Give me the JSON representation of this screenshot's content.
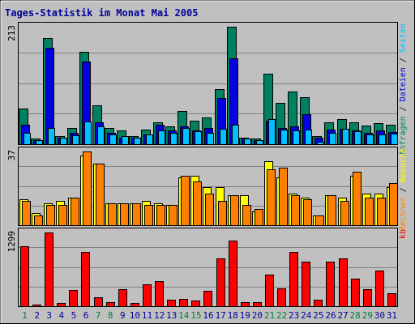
{
  "chart_data": {
    "type": "bar",
    "title": "Tages-Statistik im Monat Mai 2005",
    "colors": {
      "title": "#000099",
      "background": "#c0c0c0",
      "anfragen": "#008060",
      "dateien": "#0000e0",
      "seiten": "#00c0ff",
      "besuche": "#ffff00",
      "rechner": "#ff8000",
      "kb": "#ff0000",
      "weekday_label": "#000099",
      "weekend_label": "#008040"
    },
    "days": [
      "1",
      "2",
      "3",
      "4",
      "5",
      "6",
      "7",
      "8",
      "9",
      "10",
      "11",
      "12",
      "13",
      "14",
      "15",
      "16",
      "17",
      "18",
      "19",
      "20",
      "21",
      "22",
      "23",
      "24",
      "25",
      "26",
      "27",
      "28",
      "29",
      "30",
      "31"
    ],
    "weekend_days": [
      "1",
      "7",
      "8",
      "14",
      "15",
      "21",
      "22",
      "28",
      "29"
    ],
    "panels": [
      {
        "id": "requests",
        "max_label": "213",
        "ymax": 213,
        "right_labels": [
          {
            "text": "Anfragen",
            "color": "#008060"
          },
          {
            "text": " / ",
            "color": "#000000"
          },
          {
            "text": "Dateien",
            "color": "#0000e0"
          },
          {
            "text": " / ",
            "color": "#000000"
          },
          {
            "text": "Seiten",
            "color": "#00c0ff"
          }
        ],
        "series": [
          {
            "name": "Anfragen",
            "color": "#008060",
            "values": [
              65,
              10,
              193,
              14,
              30,
              168,
              70,
              30,
              25,
              15,
              27,
              40,
              32,
              60,
              42,
              48,
              100,
              213,
              12,
              10,
              128,
              75,
              95,
              85,
              15,
              40,
              45,
              40,
              34,
              38,
              35
            ]
          },
          {
            "name": "Dateien",
            "color": "#0000e0",
            "values": [
              35,
              8,
              175,
              12,
              20,
              150,
              40,
              20,
              12,
              12,
              18,
              35,
              25,
              32,
              25,
              30,
              84,
              155,
              10,
              8,
              42,
              30,
              32,
              55,
              12,
              27,
              28,
              25,
              20,
              25,
              22
            ]
          },
          {
            "name": "Seiten",
            "color": "#00c0ff",
            "values": [
              20,
              8,
              30,
              12,
              16,
              41,
              32,
              18,
              14,
              12,
              17,
              25,
              20,
              30,
              24,
              21,
              28,
              35,
              10,
              7,
              45,
              27,
              25,
              27,
              5,
              20,
              28,
              23,
              18,
              17,
              19
            ]
          }
        ]
      },
      {
        "id": "visits",
        "max_label": "37",
        "ymax": 37,
        "right_labels": [
          {
            "text": "Rechner",
            "color": "#ff8000"
          },
          {
            "text": " / ",
            "color": "#000000"
          },
          {
            "text": "Besuche",
            "color": "#ffff00"
          }
        ],
        "series": [
          {
            "name": "Besuche",
            "color": "#ffff00",
            "values": [
              13,
              6,
              11,
              12,
              14,
              35,
              31,
              11,
              11,
              11,
              12,
              11,
              10,
              24,
              25,
              19,
              19,
              15,
              15,
              7,
              32,
              24,
              16,
              14,
              5,
              15,
              14,
              25,
              16,
              16,
              19
            ]
          },
          {
            "name": "Rechner",
            "color": "#ff8000",
            "values": [
              12,
              5,
              10,
              10,
              14,
              37,
              31,
              11,
              11,
              11,
              10,
              10,
              10,
              25,
              22,
              16,
              12,
              15,
              10,
              8,
              28,
              29,
              15,
              13,
              5,
              15,
              12,
              27,
              14,
              14,
              21
            ]
          }
        ]
      },
      {
        "id": "kb",
        "max_label": "1299",
        "ymax": 1299,
        "right_labels": [
          {
            "text": "kb",
            "color": "#ff0000"
          }
        ],
        "series": [
          {
            "name": "kb",
            "color": "#ff0000",
            "values": [
              1050,
              35,
              1299,
              60,
              280,
              950,
              150,
              70,
              300,
              50,
              380,
              440,
              120,
              130,
              100,
              270,
              840,
              1160,
              70,
              70,
              560,
              320,
              960,
              780,
              120,
              780,
              840,
              490,
              300,
              630,
              230
            ]
          }
        ]
      }
    ]
  }
}
